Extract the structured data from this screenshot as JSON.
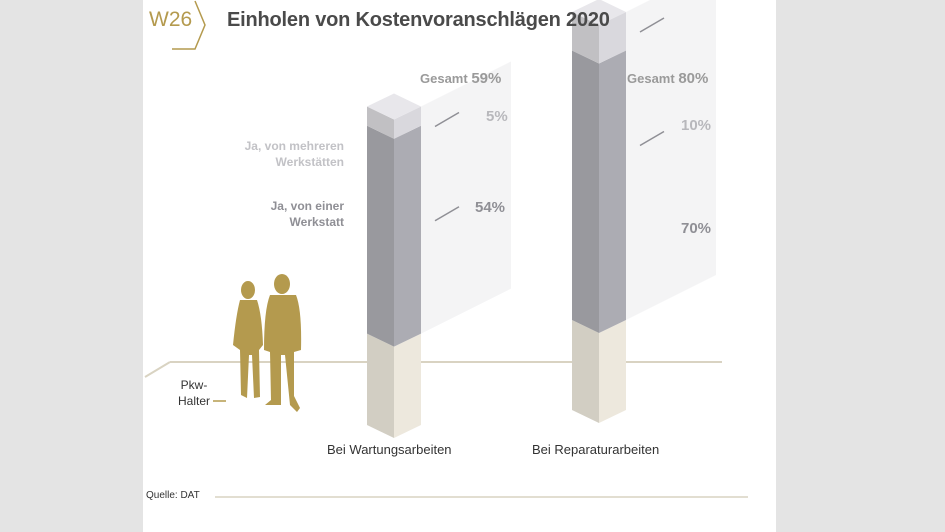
{
  "badge": "W26",
  "title": "Einholen von Kostenvoranschlägen 2020",
  "legend_label": "Pkw-Halter",
  "source": "Quelle: DAT",
  "colors": {
    "gold": "#b49a4e",
    "dark_segment": "#a4a4aa",
    "light_segment": "#cfced2",
    "base": "#e2ddd2",
    "background": "#e4e4e4"
  },
  "chart_data": {
    "type": "bar",
    "stacked": true,
    "categories": [
      "Bei Wartungsarbeiten",
      "Bei Reparaturarbeiten"
    ],
    "series": [
      {
        "name": "Ja, von einer Werkstatt",
        "values": [
          54,
          70
        ]
      },
      {
        "name": "Ja, von mehreren Werkstätten",
        "values": [
          5,
          10
        ]
      }
    ],
    "totals": [
      59,
      80
    ],
    "total_label": "Gesamt",
    "unit": "%",
    "legend_labels": [
      "Ja, von mehreren Werkstätten",
      "Ja, von einer Werkstatt"
    ],
    "ylim": [
      0,
      100
    ]
  }
}
